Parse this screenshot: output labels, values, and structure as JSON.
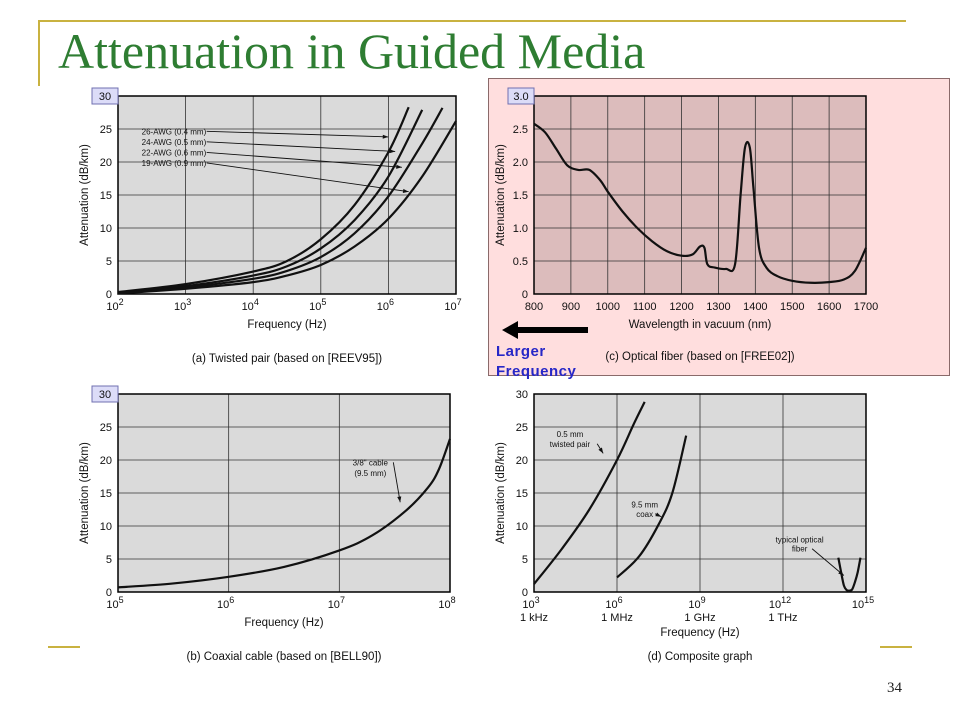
{
  "slide": {
    "title": "Attenuation in Guided Media",
    "page_number": "34",
    "note_text": "Larger Frequency",
    "theme_color": "#2e7d32",
    "highlight_fill": "#ffdede",
    "note_color": "#2727c7"
  },
  "chart_data": [
    {
      "id": "a",
      "type": "line",
      "caption": "(a) Twisted pair (based on [REEV95])",
      "xlabel": "Frequency (Hz)",
      "ylabel": "Attenuation (dB/km)",
      "x_scale": "log",
      "xlim": [
        2,
        7
      ],
      "ylim": [
        0,
        30
      ],
      "grid": true,
      "top_tick_highlight": "30",
      "x_ticks": [
        {
          "v": 2,
          "b": "10",
          "e": "2"
        },
        {
          "v": 3,
          "b": "10",
          "e": "3"
        },
        {
          "v": 4,
          "b": "10",
          "e": "4"
        },
        {
          "v": 5,
          "b": "10",
          "e": "5"
        },
        {
          "v": 6,
          "b": "10",
          "e": "6"
        },
        {
          "v": 7,
          "b": "10",
          "e": "7"
        }
      ],
      "y_ticks": [
        {
          "v": 0,
          "label": "0"
        },
        {
          "v": 5,
          "label": "5"
        },
        {
          "v": 10,
          "label": "10"
        },
        {
          "v": 15,
          "label": "15"
        },
        {
          "v": 20,
          "label": "20"
        },
        {
          "v": 25,
          "label": "25"
        }
      ],
      "series": [
        {
          "name": "26-AWG (0.4 mm)",
          "points": [
            [
              2,
              0.3
            ],
            [
              3,
              1.5
            ],
            [
              4,
              3.4
            ],
            [
              4.5,
              5
            ],
            [
              5,
              8.3
            ],
            [
              5.5,
              13.5
            ],
            [
              6,
              21.5
            ],
            [
              6.3,
              28.3
            ]
          ]
        },
        {
          "name": "24-AWG (0.5 mm)",
          "points": [
            [
              2,
              0.2
            ],
            [
              3,
              1.2
            ],
            [
              4,
              2.8
            ],
            [
              4.5,
              4.2
            ],
            [
              5,
              6.9
            ],
            [
              5.5,
              11.2
            ],
            [
              6,
              17.8
            ],
            [
              6.5,
              27.9
            ]
          ]
        },
        {
          "name": "22-AWG (0.6 mm)",
          "points": [
            [
              2,
              0.2
            ],
            [
              3,
              1.0
            ],
            [
              4,
              2.3
            ],
            [
              4.5,
              3.5
            ],
            [
              5,
              5.6
            ],
            [
              5.5,
              9.2
            ],
            [
              6,
              14.8
            ],
            [
              6.5,
              22.8
            ],
            [
              6.8,
              28.2
            ]
          ]
        },
        {
          "name": "19-AWG (0.9 mm)",
          "points": [
            [
              2,
              0.1
            ],
            [
              3,
              0.8
            ],
            [
              4,
              1.8
            ],
            [
              4.5,
              2.8
            ],
            [
              5,
              4.4
            ],
            [
              5.5,
              7.2
            ],
            [
              6,
              11.4
            ],
            [
              6.5,
              17.8
            ],
            [
              7,
              26.2
            ]
          ]
        }
      ],
      "annotations": [
        {
          "text": "26-AWG (0.4 mm)",
          "x": 2.35,
          "y": 24.2,
          "ha": "start",
          "tx": 6.0,
          "ty": 23.8
        },
        {
          "text": "24-AWG (0.5 mm)",
          "x": 2.35,
          "y": 22.6,
          "ha": "start",
          "tx": 6.1,
          "ty": 21.6
        },
        {
          "text": "22-AWG (0.6 mm)",
          "x": 2.35,
          "y": 21.0,
          "ha": "start",
          "tx": 6.2,
          "ty": 19.2
        },
        {
          "text": "19-AWG (0.9 mm)",
          "x": 2.35,
          "y": 19.4,
          "ha": "start",
          "tx": 6.3,
          "ty": 15.5
        }
      ]
    },
    {
      "id": "c",
      "type": "line",
      "caption": "(c) Optical fiber (based on [FREE02])",
      "xlabel": "Wavelength in vacuum (nm)",
      "ylabel": "Attenuation (dB/km)",
      "x_scale": "linear",
      "xlim": [
        800,
        1700
      ],
      "ylim": [
        0,
        3.0
      ],
      "grid": true,
      "top_tick_highlight": "3.0",
      "x_ticks": [
        {
          "v": 800,
          "label": "800"
        },
        {
          "v": 900,
          "label": "900"
        },
        {
          "v": 1000,
          "label": "1000"
        },
        {
          "v": 1100,
          "label": "1100"
        },
        {
          "v": 1200,
          "label": "1200"
        },
        {
          "v": 1300,
          "label": "1300"
        },
        {
          "v": 1400,
          "label": "1400"
        },
        {
          "v": 1500,
          "label": "1500"
        },
        {
          "v": 1600,
          "label": "1600"
        },
        {
          "v": 1700,
          "label": "1700"
        }
      ],
      "y_ticks": [
        {
          "v": 0,
          "label": "0"
        },
        {
          "v": 0.5,
          "label": "0.5"
        },
        {
          "v": 1.0,
          "label": "1.0"
        },
        {
          "v": 1.5,
          "label": "1.5"
        },
        {
          "v": 2.0,
          "label": "2.0"
        },
        {
          "v": 2.5,
          "label": "2.5"
        }
      ],
      "series": [
        {
          "name": "",
          "points": [
            [
              800,
              2.58
            ],
            [
              830,
              2.45
            ],
            [
              860,
              2.2
            ],
            [
              890,
              1.95
            ],
            [
              920,
              1.88
            ],
            [
              950,
              1.88
            ],
            [
              980,
              1.72
            ],
            [
              1000,
              1.55
            ],
            [
              1040,
              1.25
            ],
            [
              1080,
              1.0
            ],
            [
              1120,
              0.8
            ],
            [
              1160,
              0.65
            ],
            [
              1200,
              0.58
            ],
            [
              1230,
              0.6
            ],
            [
              1250,
              0.72
            ],
            [
              1262,
              0.7
            ],
            [
              1270,
              0.45
            ],
            [
              1290,
              0.4
            ],
            [
              1320,
              0.38
            ],
            [
              1345,
              0.45
            ],
            [
              1360,
              1.5
            ],
            [
              1372,
              2.22
            ],
            [
              1385,
              2.22
            ],
            [
              1395,
              1.6
            ],
            [
              1410,
              0.7
            ],
            [
              1430,
              0.4
            ],
            [
              1460,
              0.27
            ],
            [
              1500,
              0.2
            ],
            [
              1550,
              0.17
            ],
            [
              1600,
              0.18
            ],
            [
              1640,
              0.22
            ],
            [
              1670,
              0.35
            ],
            [
              1700,
              0.7
            ]
          ]
        }
      ],
      "annotations": []
    },
    {
      "id": "b",
      "type": "line",
      "caption": "(b) Coaxial cable (based on [BELL90])",
      "xlabel": "Frequency (Hz)",
      "ylabel": "Attenuation (dB/km)",
      "x_scale": "log",
      "xlim": [
        5,
        8
      ],
      "ylim": [
        0,
        30
      ],
      "grid": true,
      "top_tick_highlight": "30",
      "x_ticks": [
        {
          "v": 5,
          "b": "10",
          "e": "5"
        },
        {
          "v": 6,
          "b": "10",
          "e": "6"
        },
        {
          "v": 7,
          "b": "10",
          "e": "7"
        },
        {
          "v": 8,
          "b": "10",
          "e": "8"
        }
      ],
      "y_ticks": [
        {
          "v": 0,
          "label": "0"
        },
        {
          "v": 5,
          "label": "5"
        },
        {
          "v": 10,
          "label": "10"
        },
        {
          "v": 15,
          "label": "15"
        },
        {
          "v": 20,
          "label": "20"
        },
        {
          "v": 25,
          "label": "25"
        }
      ],
      "series": [
        {
          "name": "3/8\" cable (9.5 mm)",
          "points": [
            [
              5,
              0.7
            ],
            [
              5.5,
              1.3
            ],
            [
              6,
              2.3
            ],
            [
              6.5,
              3.8
            ],
            [
              7,
              6.3
            ],
            [
              7.3,
              8.6
            ],
            [
              7.6,
              12.3
            ],
            [
              7.8,
              15.8
            ],
            [
              7.9,
              18.6
            ],
            [
              8,
              23.2
            ]
          ]
        }
      ],
      "annotations": [
        {
          "text": "3/8\" cable",
          "x": 7.28,
          "y": 19.2,
          "ha": "middle",
          "tx": 7.55,
          "ty": 13.6
        },
        {
          "text": "(9.5 mm)",
          "x": 7.28,
          "y": 17.6,
          "ha": "middle"
        }
      ]
    },
    {
      "id": "d",
      "type": "line",
      "caption": "(d) Composite graph",
      "xlabel": "Frequency (Hz)",
      "ylabel": "Attenuation (dB/km)",
      "x_scale": "log",
      "xlim": [
        3,
        15
      ],
      "ylim": [
        0,
        30
      ],
      "grid": true,
      "top_tick_highlight": "",
      "x_ticks": [
        {
          "v": 3,
          "b": "10",
          "e": "3",
          "sub": "1 kHz"
        },
        {
          "v": 6,
          "b": "10",
          "e": "6",
          "sub": "1 MHz"
        },
        {
          "v": 9,
          "b": "10",
          "e": "9",
          "sub": "1 GHz"
        },
        {
          "v": 12,
          "b": "10",
          "e": "12",
          "sub": "1 THz"
        },
        {
          "v": 15,
          "b": "10",
          "e": "15"
        }
      ],
      "y_ticks": [
        {
          "v": 0,
          "label": "0"
        },
        {
          "v": 5,
          "label": "5"
        },
        {
          "v": 10,
          "label": "10"
        },
        {
          "v": 15,
          "label": "15"
        },
        {
          "v": 20,
          "label": "20"
        },
        {
          "v": 25,
          "label": "25"
        },
        {
          "v": 30,
          "label": "30"
        }
      ],
      "series": [
        {
          "name": "0.5 mm twisted pair",
          "points": [
            [
              3,
              1.2
            ],
            [
              4,
              6.5
            ],
            [
              5,
              12.5
            ],
            [
              6,
              20
            ],
            [
              6.6,
              25.4
            ],
            [
              7,
              28.8
            ]
          ]
        },
        {
          "name": "9.5 mm coax",
          "points": [
            [
              6,
              2.2
            ],
            [
              6.8,
              5.4
            ],
            [
              7.5,
              10.2
            ],
            [
              8,
              15
            ],
            [
              8.5,
              23.7
            ]
          ]
        },
        {
          "name": "typical optical fiber",
          "points": [
            [
              14.0,
              5.2
            ],
            [
              14.1,
              3.0
            ],
            [
              14.2,
              1.0
            ],
            [
              14.3,
              0.3
            ],
            [
              14.4,
              0.2
            ],
            [
              14.5,
              0.4
            ],
            [
              14.6,
              1.5
            ],
            [
              14.7,
              3.0
            ],
            [
              14.8,
              5.2
            ]
          ]
        }
      ],
      "annotations": [
        {
          "text": "0.5 mm",
          "x": 4.3,
          "y": 23.5,
          "ha": "middle"
        },
        {
          "text": "twisted pair",
          "x": 4.3,
          "y": 22.0,
          "ha": "middle",
          "tx": 5.5,
          "ty": 21.0
        },
        {
          "text": "9.5 mm",
          "x": 7.0,
          "y": 12.8,
          "ha": "middle"
        },
        {
          "text": "coax",
          "x": 7.0,
          "y": 11.4,
          "ha": "middle",
          "tx": 7.6,
          "ty": 11.4
        },
        {
          "text": "typical optical",
          "x": 12.6,
          "y": 7.5,
          "ha": "middle"
        },
        {
          "text": "fiber",
          "x": 12.6,
          "y": 6.1,
          "ha": "middle",
          "tx": 14.2,
          "ty": 2.5
        }
      ]
    }
  ]
}
